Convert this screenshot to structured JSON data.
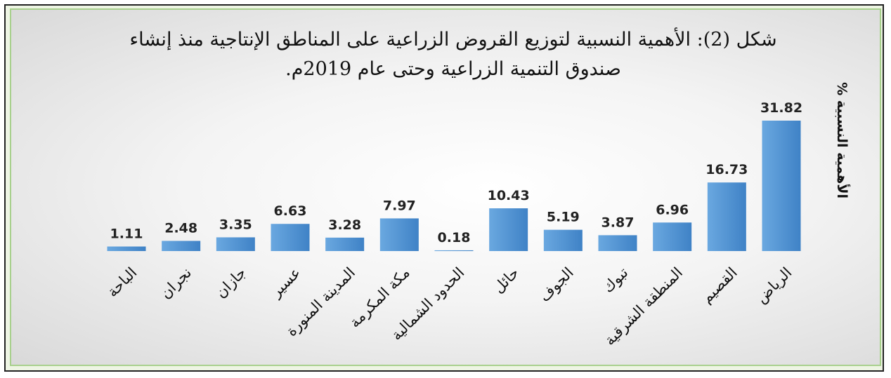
{
  "chart_data": {
    "type": "bar",
    "title": "شكل (2): الأهمية النسبية لتوزيع القروض الزراعية على المناطق الإنتاجية منذ إنشاء صندوق التنمية الزراعية وحتى عام 2019م.",
    "y_label": "الأهمية النسبية %",
    "categories": [
      "الرياض",
      "القصيم",
      "المنطقة الشرقية",
      "تبوك",
      "الجوف",
      "حائل",
      "الحدود الشمالية",
      "مكة المكرمة",
      "المدينة المنورة",
      "عسير",
      "جازان",
      "نجران",
      "الباحة"
    ],
    "values": [
      31.82,
      16.73,
      6.96,
      3.87,
      5.19,
      10.43,
      0.18,
      7.97,
      3.28,
      6.63,
      3.35,
      2.48,
      1.11
    ],
    "color": "#5b9bd5"
  }
}
